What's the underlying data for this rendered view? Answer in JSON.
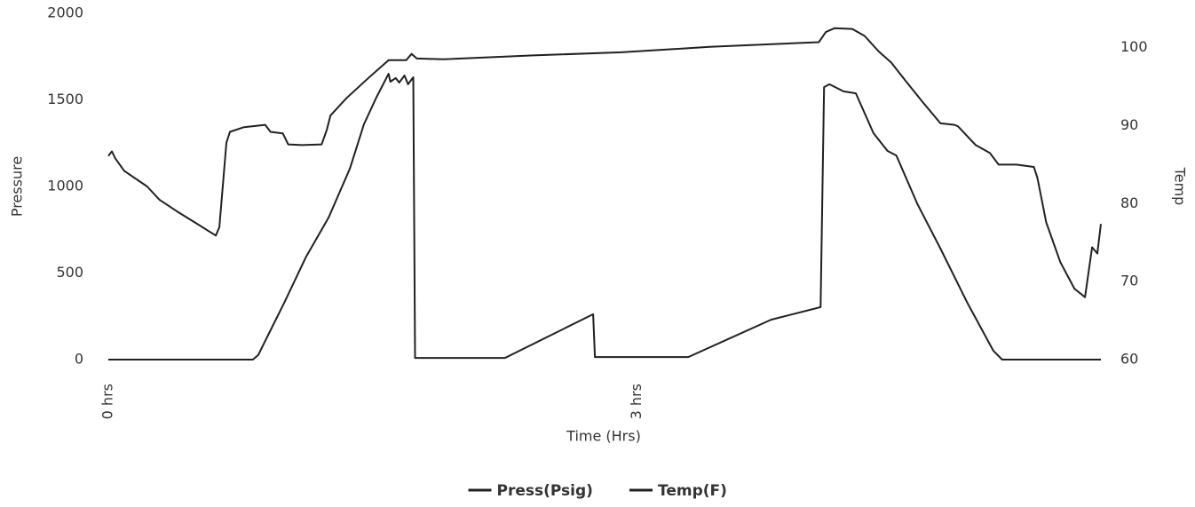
{
  "chart_data": {
    "type": "line",
    "x_label": "Time (Hrs)",
    "y_label": "Pressure",
    "y2_label": "Temp",
    "xlim": [
      0,
      5.63
    ],
    "xticks": [
      {
        "value": 0,
        "label": "0 hrs"
      },
      {
        "value": 3,
        "label": "3 hrs"
      }
    ],
    "ylim": [
      0,
      2000
    ],
    "yticks": [
      0,
      500,
      1000,
      1500,
      2000
    ],
    "y2lim": [
      60,
      104.4
    ],
    "y2ticks": [
      60,
      70,
      80,
      90,
      100
    ],
    "legend": "bottom",
    "series": [
      {
        "name": "Press(Psig)",
        "color": "#231f20",
        "x": [
          0,
          0.82,
          0.85,
          0.9,
          1.0,
          1.12,
          1.25,
          1.37,
          1.45,
          1.52,
          1.59,
          1.6,
          1.63,
          1.65,
          1.68,
          1.7,
          1.73,
          1.74,
          2.25,
          2.75,
          2.76,
          3.29,
          3.76,
          4.04,
          4.06,
          4.09,
          4.17,
          4.24,
          4.34,
          4.42,
          4.47,
          4.59,
          4.72,
          4.87,
          5.02,
          5.07,
          5.63
        ],
        "values": [
          0,
          0,
          26,
          128,
          333,
          590,
          821,
          1103,
          1359,
          1513,
          1651,
          1605,
          1626,
          1600,
          1641,
          1590,
          1631,
          10,
          10,
          262,
          15,
          15,
          231,
          303,
          1574,
          1590,
          1549,
          1538,
          1308,
          1205,
          1179,
          897,
          641,
          333,
          51,
          0,
          0
        ]
      },
      {
        "name": "Temp(F)",
        "color": "#231f20",
        "axis": "y2",
        "x": [
          0,
          0.02,
          0.04,
          0.09,
          0.22,
          0.29,
          0.39,
          0.49,
          0.61,
          0.63,
          0.67,
          0.69,
          0.77,
          0.89,
          0.92,
          0.99,
          1.02,
          1.1,
          1.21,
          1.24,
          1.26,
          1.35,
          1.47,
          1.59,
          1.69,
          1.72,
          1.75,
          1.9,
          2.41,
          2.91,
          3.41,
          4.03,
          4.07,
          4.12,
          4.22,
          4.29,
          4.37,
          4.44,
          4.52,
          4.62,
          4.72,
          4.8,
          4.82,
          4.92,
          5.0,
          5.05,
          5.15,
          5.25,
          5.27,
          5.32,
          5.4,
          5.48,
          5.54,
          5.58,
          5.61,
          5.63
        ],
        "values": [
          86.1,
          86.7,
          85.8,
          84.2,
          82.2,
          80.5,
          79.0,
          77.6,
          75.9,
          77.0,
          87.8,
          89.2,
          89.8,
          90.1,
          89.2,
          89.0,
          87.6,
          87.5,
          87.6,
          89.5,
          91.3,
          93.5,
          96.0,
          98.4,
          98.4,
          99.2,
          98.6,
          98.5,
          99.0,
          99.4,
          100.1,
          100.7,
          102.0,
          102.5,
          102.4,
          101.5,
          99.5,
          98.1,
          95.8,
          93.0,
          90.3,
          90.1,
          89.9,
          87.5,
          86.5,
          85.0,
          85.0,
          84.7,
          83.3,
          77.6,
          72.5,
          69.1,
          68.0,
          74.4,
          73.6,
          77.4
        ]
      }
    ]
  }
}
